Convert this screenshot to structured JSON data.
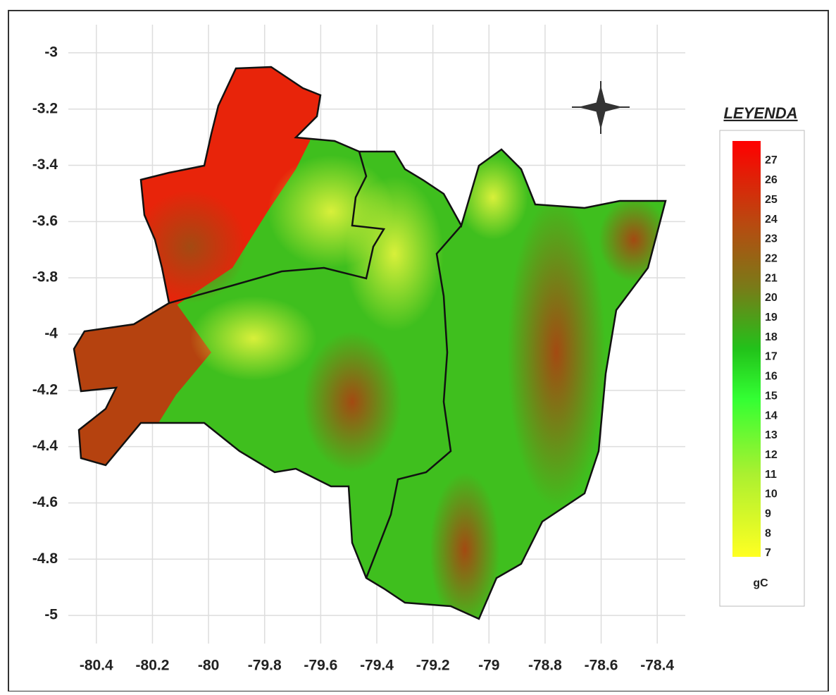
{
  "map": {
    "xlim": [
      -80.5,
      -78.3
    ],
    "ylim": [
      -5.1,
      -2.9
    ],
    "xticks": [
      -80.4,
      -80.2,
      -80,
      -79.8,
      -79.6,
      -79.4,
      -79.2,
      -79,
      -78.8,
      -78.6,
      -78.4
    ],
    "yticks": [
      -3,
      -3.2,
      -3.4,
      -3.6,
      -3.8,
      -4,
      -4.2,
      -4.4,
      -4.6,
      -4.8,
      -5
    ],
    "legend": {
      "title": "LEYENDA",
      "labels": [
        27,
        26,
        25,
        24,
        23,
        22,
        21,
        20,
        19,
        18,
        17,
        16,
        15,
        14,
        13,
        12,
        11,
        10,
        9,
        8,
        7
      ],
      "unit": "gC"
    }
  }
}
